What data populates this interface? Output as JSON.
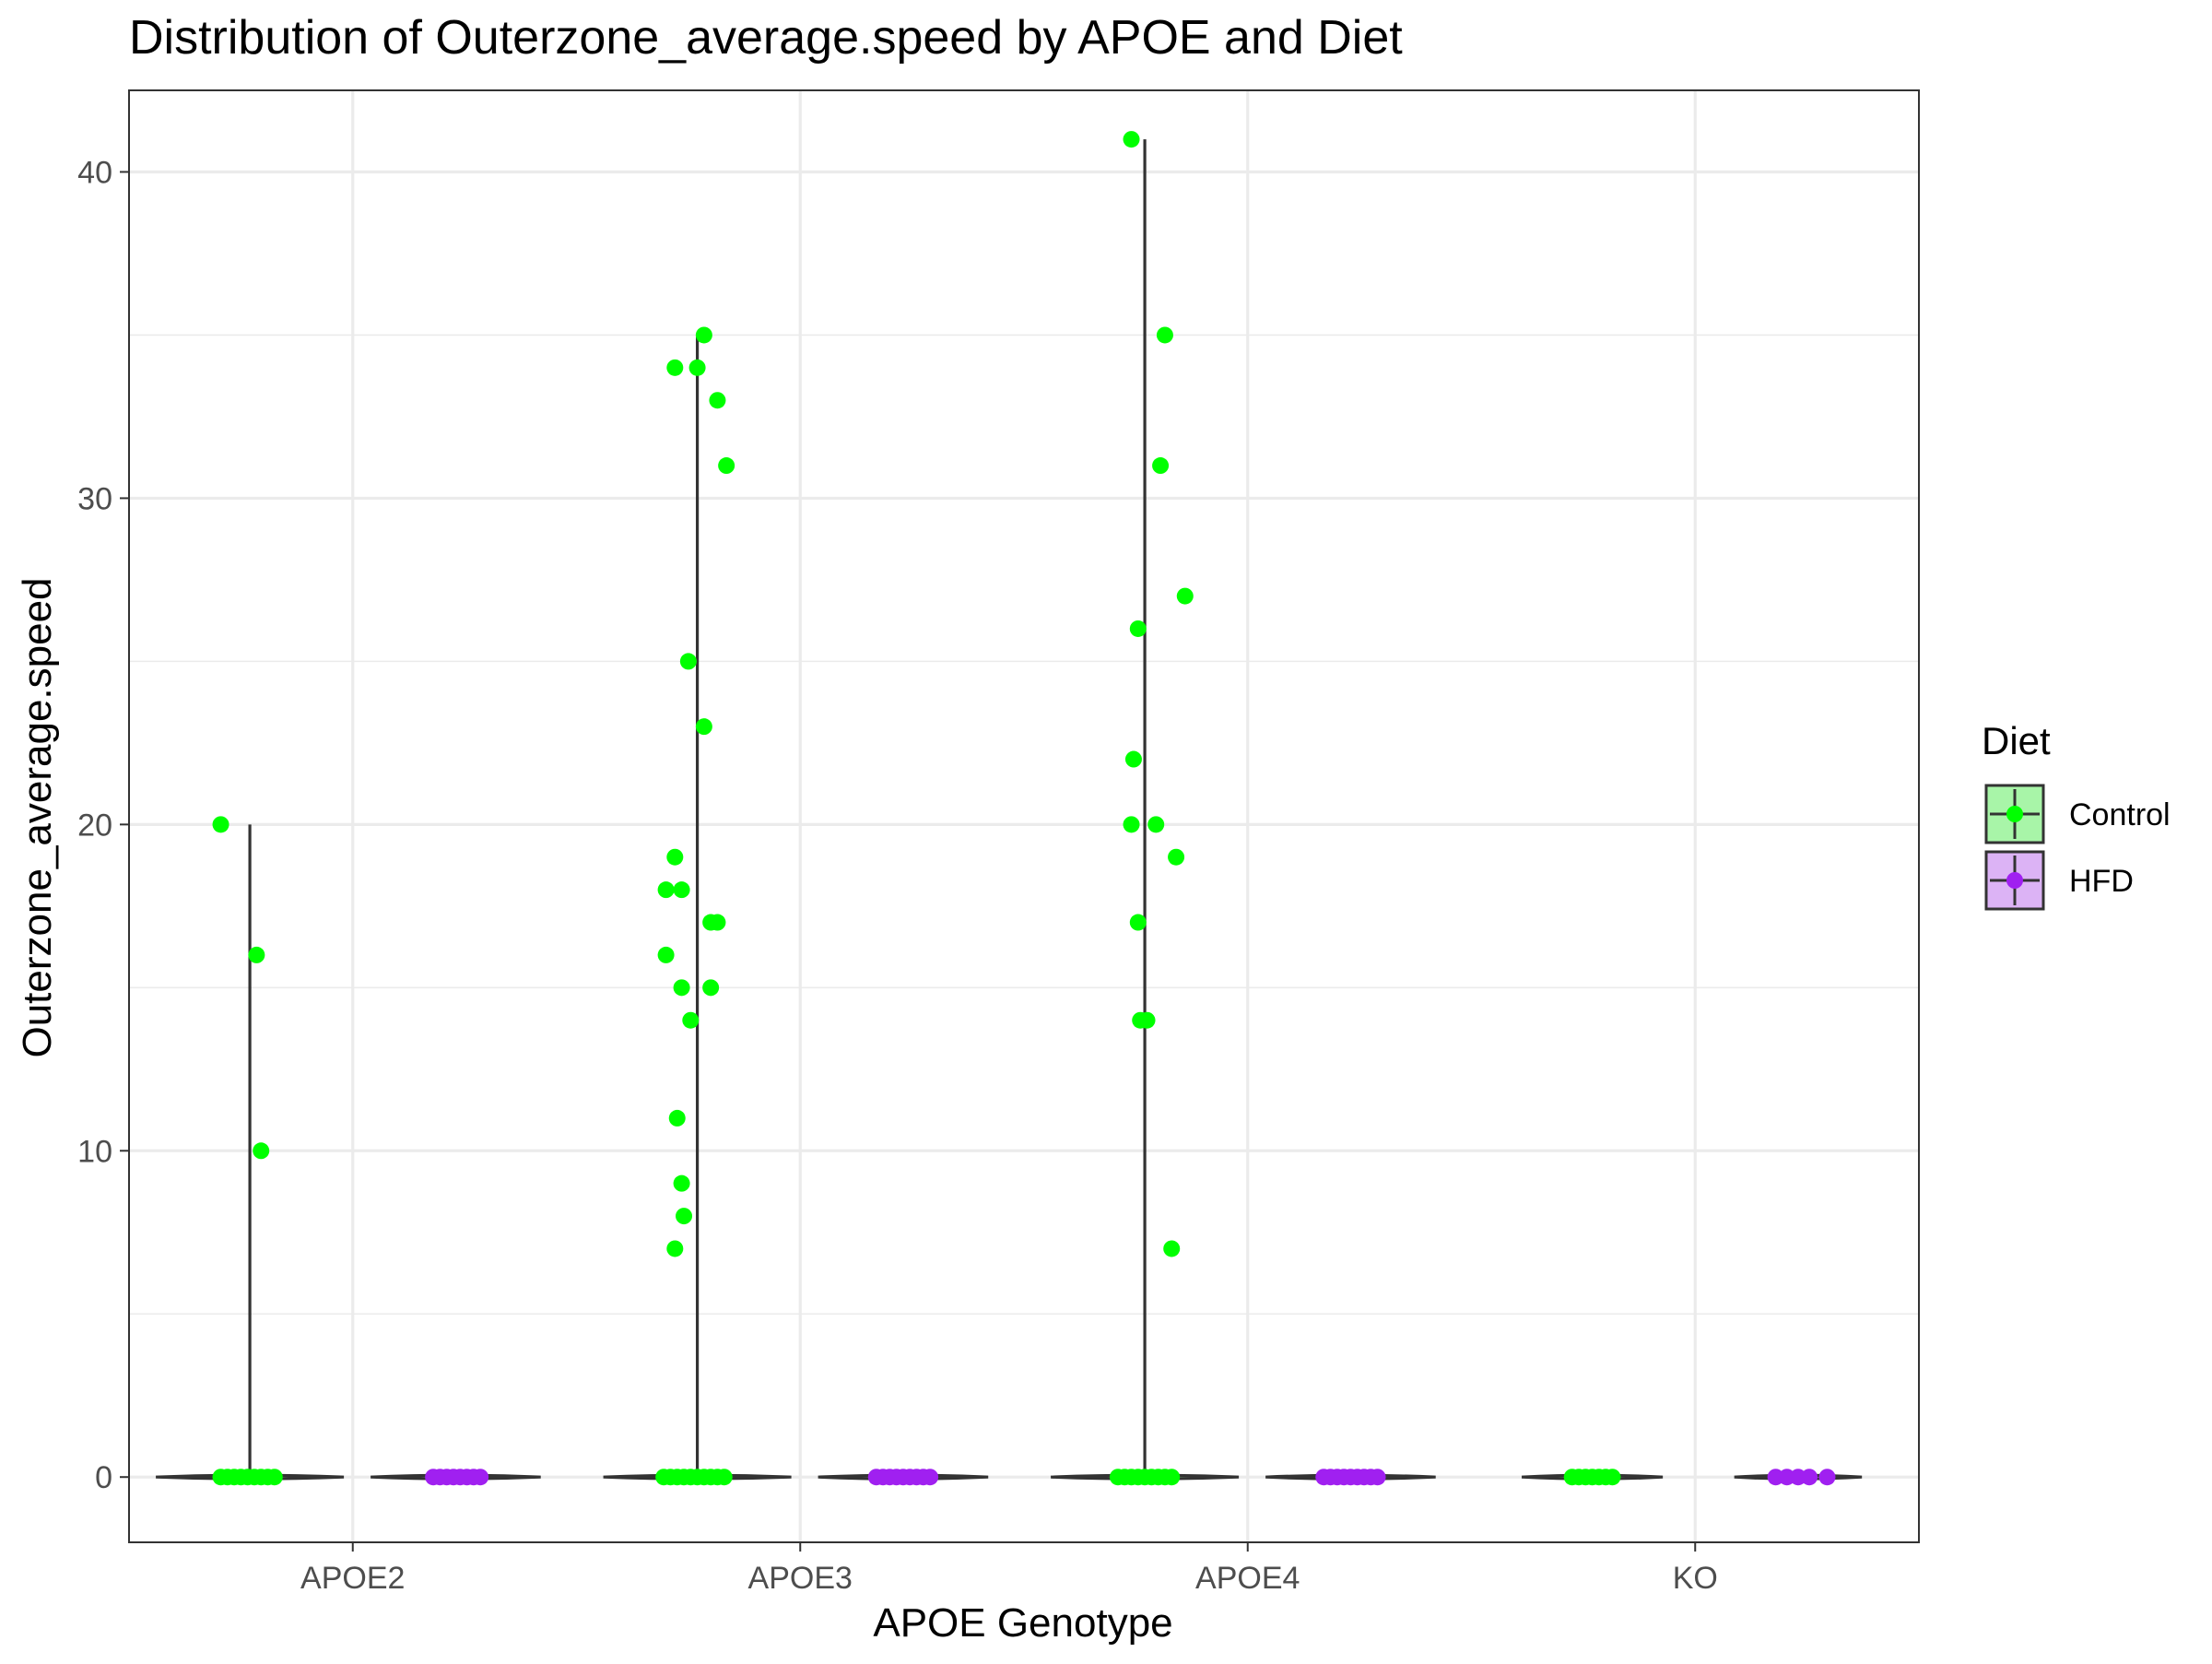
{
  "chart_data": {
    "type": "violin",
    "title": "Distribution of Outerzone_average.speed by APOE and Diet",
    "xlabel": "APOE Genotype",
    "ylabel": "Outerzone_average.speed",
    "categories": [
      "APOE2",
      "APOE3",
      "APOE4",
      "KO"
    ],
    "ylim": [
      -2,
      42.5
    ],
    "yticks": [
      0,
      10,
      20,
      30,
      40
    ],
    "grid": true,
    "legend": {
      "title": "Diet",
      "placement": "right",
      "entries": [
        "Control",
        "HFD"
      ]
    },
    "colors": {
      "Control": "#00ff00",
      "HFD": "#a020f0",
      "Control_fill": "#a8f5a8",
      "HFD_fill": "#dcb3f5",
      "outline": "#333333",
      "grid": "#ebebeb",
      "panel_border": "#333333"
    },
    "series": [
      {
        "name": "Control",
        "groups": [
          {
            "category": "APOE2",
            "max": 20,
            "points": [
              {
                "x": -0.13,
                "y": 20
              },
              {
                "x": 0.03,
                "y": 16
              },
              {
                "x": 0.05,
                "y": 10
              },
              {
                "x": -0.13,
                "y": 0
              },
              {
                "x": -0.1,
                "y": 0
              },
              {
                "x": -0.07,
                "y": 0
              },
              {
                "x": -0.04,
                "y": 0
              },
              {
                "x": -0.01,
                "y": 0
              },
              {
                "x": 0.02,
                "y": 0
              },
              {
                "x": 0.05,
                "y": 0
              },
              {
                "x": 0.08,
                "y": 0
              },
              {
                "x": 0.11,
                "y": 0
              }
            ]
          },
          {
            "category": "APOE3",
            "max": 35,
            "points": [
              {
                "x": 0.03,
                "y": 35
              },
              {
                "x": -0.1,
                "y": 34
              },
              {
                "x": 0.0,
                "y": 34
              },
              {
                "x": 0.09,
                "y": 33
              },
              {
                "x": 0.13,
                "y": 31
              },
              {
                "x": -0.04,
                "y": 25
              },
              {
                "x": 0.03,
                "y": 23
              },
              {
                "x": -0.1,
                "y": 19
              },
              {
                "x": -0.14,
                "y": 18
              },
              {
                "x": -0.07,
                "y": 18
              },
              {
                "x": 0.06,
                "y": 17
              },
              {
                "x": 0.09,
                "y": 17
              },
              {
                "x": -0.14,
                "y": 16
              },
              {
                "x": -0.07,
                "y": 15
              },
              {
                "x": 0.06,
                "y": 15
              },
              {
                "x": -0.03,
                "y": 14
              },
              {
                "x": -0.09,
                "y": 11
              },
              {
                "x": -0.07,
                "y": 9
              },
              {
                "x": -0.06,
                "y": 8
              },
              {
                "x": -0.1,
                "y": 7
              },
              {
                "x": -0.15,
                "y": 0
              },
              {
                "x": -0.12,
                "y": 0
              },
              {
                "x": -0.09,
                "y": 0
              },
              {
                "x": -0.06,
                "y": 0
              },
              {
                "x": -0.03,
                "y": 0
              },
              {
                "x": 0.0,
                "y": 0
              },
              {
                "x": 0.03,
                "y": 0
              },
              {
                "x": 0.06,
                "y": 0
              },
              {
                "x": 0.09,
                "y": 0
              },
              {
                "x": 0.12,
                "y": 0
              }
            ]
          },
          {
            "category": "APOE4",
            "max": 41,
            "points": [
              {
                "x": -0.06,
                "y": 41
              },
              {
                "x": 0.09,
                "y": 35
              },
              {
                "x": 0.07,
                "y": 31
              },
              {
                "x": 0.18,
                "y": 27
              },
              {
                "x": -0.03,
                "y": 26
              },
              {
                "x": -0.05,
                "y": 22
              },
              {
                "x": -0.06,
                "y": 20
              },
              {
                "x": 0.05,
                "y": 20
              },
              {
                "x": 0.14,
                "y": 19
              },
              {
                "x": -0.03,
                "y": 17
              },
              {
                "x": -0.02,
                "y": 14
              },
              {
                "x": 0.01,
                "y": 14
              },
              {
                "x": 0.12,
                "y": 7
              },
              {
                "x": -0.12,
                "y": 0
              },
              {
                "x": -0.09,
                "y": 0
              },
              {
                "x": -0.06,
                "y": 0
              },
              {
                "x": -0.03,
                "y": 0
              },
              {
                "x": 0.0,
                "y": 0
              },
              {
                "x": 0.03,
                "y": 0
              },
              {
                "x": 0.06,
                "y": 0
              },
              {
                "x": 0.09,
                "y": 0
              },
              {
                "x": 0.12,
                "y": 0
              }
            ]
          },
          {
            "category": "KO",
            "max": 0,
            "points": [
              {
                "x": -0.09,
                "y": 0
              },
              {
                "x": -0.06,
                "y": 0
              },
              {
                "x": -0.03,
                "y": 0
              },
              {
                "x": 0.0,
                "y": 0
              },
              {
                "x": 0.03,
                "y": 0
              },
              {
                "x": 0.06,
                "y": 0
              },
              {
                "x": 0.09,
                "y": 0
              }
            ]
          }
        ]
      },
      {
        "name": "HFD",
        "groups": [
          {
            "category": "APOE2",
            "max": 0,
            "points": [
              {
                "x": -0.1,
                "y": 0
              },
              {
                "x": -0.07,
                "y": 0
              },
              {
                "x": -0.04,
                "y": 0
              },
              {
                "x": -0.01,
                "y": 0
              },
              {
                "x": 0.02,
                "y": 0
              },
              {
                "x": 0.05,
                "y": 0
              },
              {
                "x": 0.08,
                "y": 0
              },
              {
                "x": 0.11,
                "y": 0
              }
            ]
          },
          {
            "category": "APOE3",
            "max": 0,
            "points": [
              {
                "x": -0.12,
                "y": 0
              },
              {
                "x": -0.09,
                "y": 0
              },
              {
                "x": -0.06,
                "y": 0
              },
              {
                "x": -0.03,
                "y": 0
              },
              {
                "x": 0.0,
                "y": 0
              },
              {
                "x": 0.03,
                "y": 0
              },
              {
                "x": 0.06,
                "y": 0
              },
              {
                "x": 0.09,
                "y": 0
              },
              {
                "x": 0.12,
                "y": 0
              }
            ]
          },
          {
            "category": "APOE4",
            "max": 0,
            "points": [
              {
                "x": -0.12,
                "y": 0
              },
              {
                "x": -0.09,
                "y": 0
              },
              {
                "x": -0.06,
                "y": 0
              },
              {
                "x": -0.03,
                "y": 0
              },
              {
                "x": 0.0,
                "y": 0
              },
              {
                "x": 0.03,
                "y": 0
              },
              {
                "x": 0.06,
                "y": 0
              },
              {
                "x": 0.09,
                "y": 0
              },
              {
                "x": 0.12,
                "y": 0
              }
            ]
          },
          {
            "category": "KO",
            "max": 0,
            "points": [
              {
                "x": -0.1,
                "y": 0
              },
              {
                "x": -0.05,
                "y": 0
              },
              {
                "x": 0.0,
                "y": 0
              },
              {
                "x": 0.05,
                "y": 0
              },
              {
                "x": 0.13,
                "y": 0
              }
            ]
          }
        ]
      }
    ]
  }
}
